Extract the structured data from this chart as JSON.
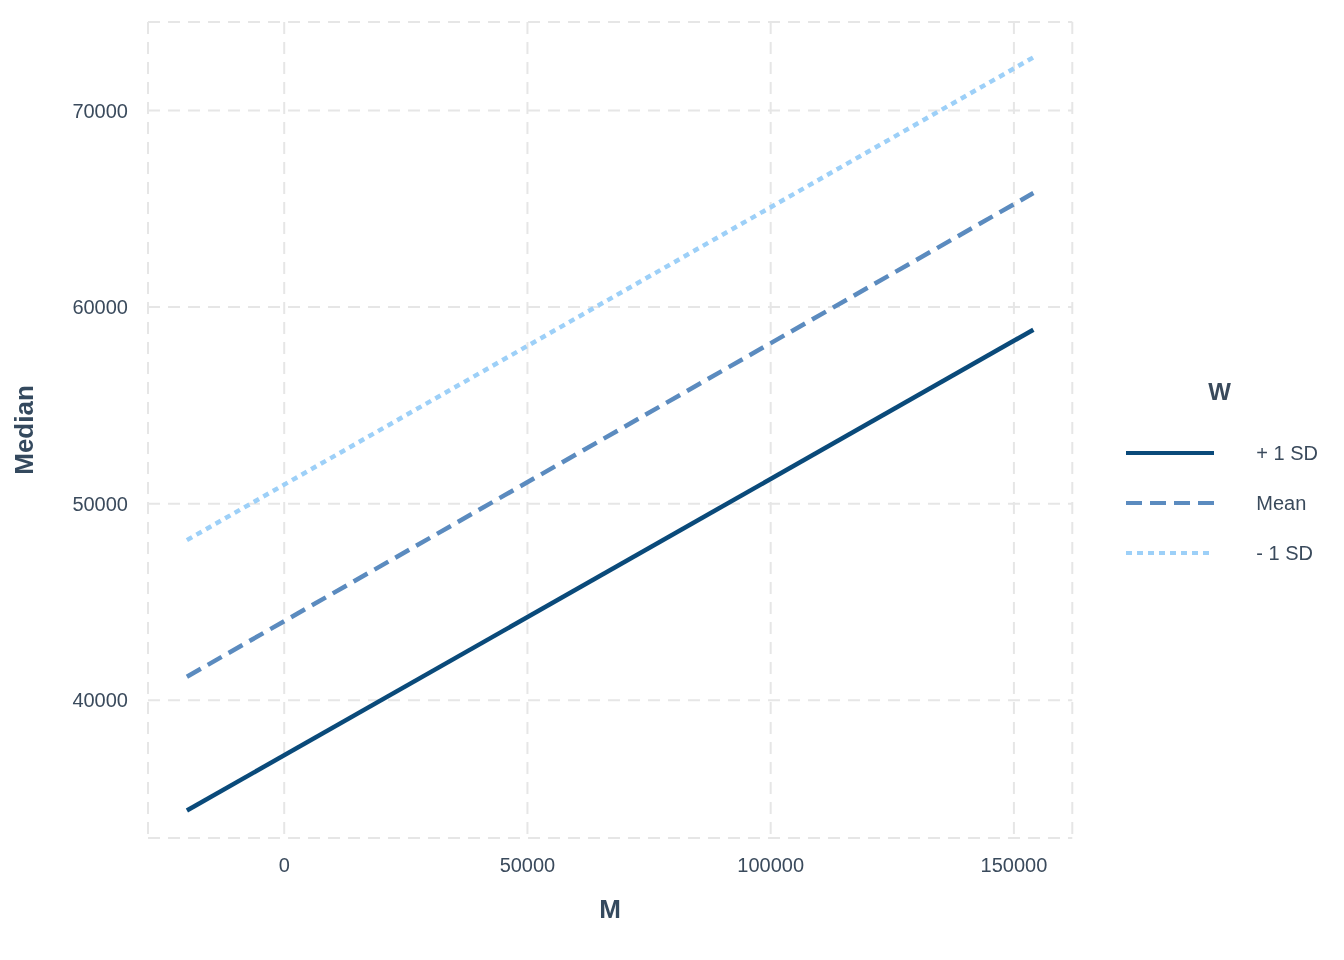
{
  "chart_data": {
    "type": "line",
    "xlabel": "M",
    "ylabel": "Median",
    "legend_title": "W",
    "x": [
      -20000,
      154000
    ],
    "series": [
      {
        "name": "+ 1 SD",
        "color": "#0a4a7a",
        "line_style": "solid",
        "values": [
          34400,
          58850
        ]
      },
      {
        "name": "Mean",
        "color": "#5b8bbf",
        "line_style": "dashed",
        "values": [
          41200,
          65800
        ]
      },
      {
        "name": "- 1 SD",
        "color": "#9dd0f8",
        "line_style": "dotted",
        "values": [
          48150,
          72700
        ]
      }
    ],
    "xlim": [
      -28000,
      162000
    ],
    "xticks": [
      0,
      50000,
      100000,
      150000
    ],
    "ylim": [
      33000,
      74500
    ],
    "yticks": [
      40000,
      50000,
      60000,
      70000
    ],
    "grid": true,
    "legend": "right"
  }
}
